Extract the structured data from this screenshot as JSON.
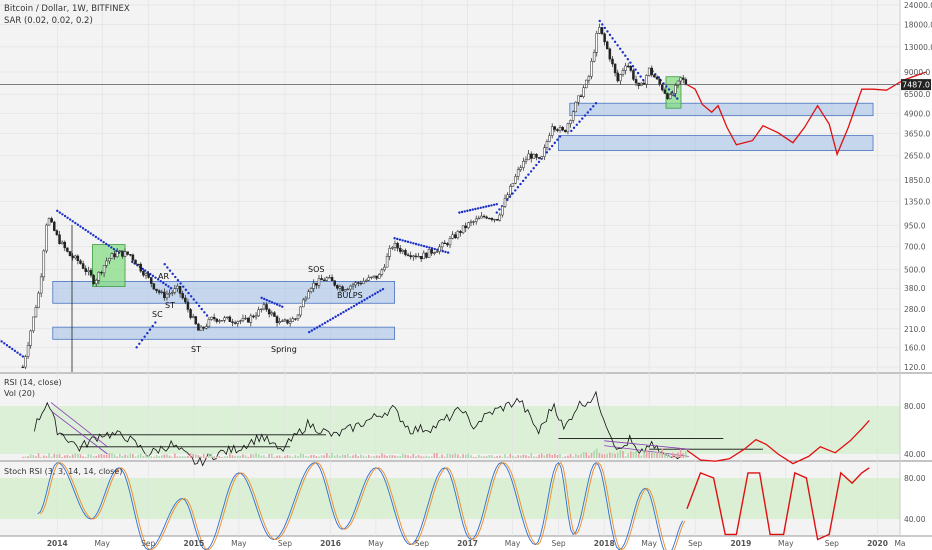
{
  "header": {
    "title": "Bitcoin / Dollar, 1W, BITFINEX",
    "indicator": "SAR (0.02, 0.02, 0.2)"
  },
  "last_price": "7487.0",
  "panels": {
    "rsi_title": "RSI (14, close)",
    "vol_title": "Vol (20)",
    "stoch_title": "Stoch RSI (3, 3, 14, 14, close)"
  },
  "wyckoff": {
    "ar": "AR",
    "sc": "SC",
    "st1": "ST",
    "st2": "ST",
    "spring": "Spring",
    "sos": "SOS",
    "bulps": "BULPS"
  },
  "chart_data": {
    "type": "candlestick",
    "symbol": "Bitcoin / Dollar",
    "interval": "1W",
    "exchange": "BITFINEX",
    "y_scale": "log",
    "price_ticks": [
      "24000.0",
      "18000.0",
      "13000.0",
      "9000.0",
      "6500.0",
      "4900.0",
      "3650.0",
      "2650.0",
      "1850.0",
      "1350.0",
      "950.0",
      "700.0",
      "500.0",
      "380.0",
      "280.0",
      "210.0",
      "160.0",
      "120.0"
    ],
    "time_ticks": [
      "2014",
      "May",
      "Sep",
      "2015",
      "May",
      "Sep",
      "2016",
      "May",
      "Sep",
      "2017",
      "May",
      "Sep",
      "2018",
      "May",
      "Sep",
      "2019",
      "May",
      "Sep",
      "2020",
      "Ma"
    ],
    "rsi_ticks": [
      "80.00",
      "40.00"
    ],
    "stoch_ticks": [
      "80.00",
      "40.00"
    ],
    "price_path": [
      [
        "2013-10-01",
        120
      ],
      [
        "2013-11-15",
        380
      ],
      [
        "2013-12-05",
        1100
      ],
      [
        "2014-01-01",
        800
      ],
      [
        "2014-02-01",
        620
      ],
      [
        "2014-03-01",
        560
      ],
      [
        "2014-04-10",
        420
      ],
      [
        "2014-05-15",
        580
      ],
      [
        "2014-06-10",
        640
      ],
      [
        "2014-07-15",
        620
      ],
      [
        "2014-08-20",
        480
      ],
      [
        "2014-09-20",
        380
      ],
      [
        "2014-10-10",
        340
      ],
      [
        "2014-11-20",
        375
      ],
      [
        "2015-01-15",
        200
      ],
      [
        "2015-02-20",
        245
      ],
      [
        "2015-04-01",
        240
      ],
      [
        "2015-05-20",
        235
      ],
      [
        "2015-07-10",
        290
      ],
      [
        "2015-08-20",
        225
      ],
      [
        "2015-10-01",
        245
      ],
      [
        "2015-11-05",
        390
      ],
      [
        "2015-12-20",
        440
      ],
      [
        "2016-02-01",
        380
      ],
      [
        "2016-03-20",
        415
      ],
      [
        "2016-05-10",
        455
      ],
      [
        "2016-06-15",
        720
      ],
      [
        "2016-07-15",
        650
      ],
      [
        "2016-09-01",
        605
      ],
      [
        "2016-11-01",
        720
      ],
      [
        "2017-01-01",
        960
      ],
      [
        "2017-02-20",
        1100
      ],
      [
        "2017-03-20",
        1050
      ],
      [
        "2017-05-20",
        2200
      ],
      [
        "2017-06-15",
        2700
      ],
      [
        "2017-07-15",
        2400
      ],
      [
        "2017-08-15",
        4200
      ],
      [
        "2017-09-15",
        3700
      ],
      [
        "2017-10-20",
        5800
      ],
      [
        "2017-11-20",
        8200
      ],
      [
        "2017-12-17",
        17500
      ],
      [
        "2018-01-15",
        11500
      ],
      [
        "2018-02-05",
        7800
      ],
      [
        "2018-03-01",
        10500
      ],
      [
        "2018-04-05",
        6900
      ],
      [
        "2018-05-01",
        9300
      ],
      [
        "2018-06-25",
        6100
      ],
      [
        "2018-07-25",
        8200
      ],
      [
        "2018-08-10",
        7487
      ]
    ],
    "projection_path": [
      [
        "2018-08-10",
        7487
      ],
      [
        "2018-09-01",
        7000
      ],
      [
        "2018-09-20",
        5600
      ],
      [
        "2018-10-15",
        5000
      ],
      [
        "2018-11-01",
        5500
      ],
      [
        "2018-11-25",
        4000
      ],
      [
        "2018-12-20",
        3100
      ],
      [
        "2019-02-01",
        3300
      ],
      [
        "2019-03-01",
        4100
      ],
      [
        "2019-04-10",
        3700
      ],
      [
        "2019-05-20",
        3200
      ],
      [
        "2019-06-20",
        4000
      ],
      [
        "2019-07-25",
        5500
      ],
      [
        "2019-08-25",
        4200
      ],
      [
        "2019-09-15",
        2700
      ],
      [
        "2019-10-15",
        4000
      ],
      [
        "2019-11-20",
        7000
      ],
      [
        "2019-12-20",
        7000
      ],
      [
        "2020-01-25",
        6900
      ],
      [
        "2020-03-10",
        8000
      ],
      [
        "2020-05-10",
        9000
      ]
    ],
    "boxes": [
      {
        "type": "support",
        "from": "2013-12-20",
        "to": "2016-06-20",
        "low": 305,
        "high": 420
      },
      {
        "type": "support",
        "from": "2013-12-20",
        "to": "2016-06-20",
        "low": 180,
        "high": 215
      },
      {
        "type": "support",
        "from": "2017-10-01",
        "to": "2019-12-20",
        "low": 4750,
        "high": 5700
      },
      {
        "type": "support",
        "from": "2017-09-01",
        "to": "2019-12-20",
        "low": 2850,
        "high": 3550
      },
      {
        "type": "accumulation",
        "from": "2014-04-05",
        "to": "2014-07-01",
        "low": 390,
        "high": 720
      },
      {
        "type": "accumulation",
        "from": "2018-06-15",
        "to": "2018-07-25",
        "low": 5300,
        "high": 8400
      }
    ],
    "sar_dots": [
      {
        "from": "2013-07-01",
        "to": "2013-10-01",
        "p0": 200,
        "p1": 140
      },
      {
        "from": "2014-01-01",
        "to": "2014-06-15",
        "p0": 1180,
        "p1": 640
      },
      {
        "from": "2014-07-20",
        "to": "2014-11-01",
        "p0": 560,
        "p1": 380
      },
      {
        "from": "2014-08-01",
        "to": "2014-09-20",
        "p0": 160,
        "p1": 230
      },
      {
        "from": "2014-10-15",
        "to": "2015-02-05",
        "p0": 540,
        "p1": 255
      },
      {
        "from": "2015-07-01",
        "to": "2015-08-25",
        "p0": 330,
        "p1": 290
      },
      {
        "from": "2015-11-05",
        "to": "2016-05-20",
        "p0": 200,
        "p1": 375
      },
      {
        "from": "2016-06-20",
        "to": "2016-11-10",
        "p0": 790,
        "p1": 640
      },
      {
        "from": "2016-12-10",
        "to": "2017-03-20",
        "p0": 1150,
        "p1": 1300
      },
      {
        "from": "2017-03-20",
        "to": "2017-09-05",
        "p0": 1150,
        "p1": 3500
      },
      {
        "from": "2017-10-05",
        "to": "2017-12-10",
        "p0": 3800,
        "p1": 5700
      },
      {
        "from": "2017-12-20",
        "to": "2018-04-15",
        "p0": 19000,
        "p1": 8000
      },
      {
        "from": "2018-05-10",
        "to": "2018-07-15",
        "p0": 9100,
        "p1": 6100
      }
    ],
    "rsi": {
      "actual": [
        [
          "2013-11-01",
          62
        ],
        [
          "2013-12-05",
          84
        ],
        [
          "2014-01-01",
          60
        ],
        [
          "2014-03-01",
          45
        ],
        [
          "2014-05-01",
          57
        ],
        [
          "2014-07-01",
          55
        ],
        [
          "2014-09-01",
          40
        ],
        [
          "2014-11-01",
          48
        ],
        [
          "2015-01-10",
          32
        ],
        [
          "2015-03-01",
          40
        ],
        [
          "2015-05-01",
          45
        ],
        [
          "2015-07-01",
          55
        ],
        [
          "2015-08-20",
          42
        ],
        [
          "2015-11-01",
          65
        ],
        [
          "2016-01-10",
          55
        ],
        [
          "2016-03-01",
          62
        ],
        [
          "2016-06-15",
          78
        ],
        [
          "2016-08-01",
          60
        ],
        [
          "2016-10-01",
          62
        ],
        [
          "2016-12-20",
          78
        ],
        [
          "2017-01-10",
          62
        ],
        [
          "2017-03-01",
          74
        ],
        [
          "2017-05-20",
          85
        ],
        [
          "2017-07-10",
          58
        ],
        [
          "2017-08-20",
          82
        ],
        [
          "2017-09-15",
          60
        ],
        [
          "2017-10-20",
          80
        ],
        [
          "2017-12-10",
          88
        ],
        [
          "2018-01-20",
          55
        ],
        [
          "2018-02-10",
          42
        ],
        [
          "2018-03-10",
          52
        ],
        [
          "2018-04-05",
          38
        ],
        [
          "2018-05-01",
          48
        ],
        [
          "2018-06-25",
          36
        ],
        [
          "2018-08-05",
          43
        ]
      ],
      "projection": [
        [
          "2018-08-10",
          43
        ],
        [
          "2018-09-15",
          35
        ],
        [
          "2018-10-25",
          34
        ],
        [
          "2018-12-01",
          36
        ],
        [
          "2019-01-10",
          44
        ],
        [
          "2019-02-10",
          52
        ],
        [
          "2019-03-10",
          48
        ],
        [
          "2019-04-10",
          40
        ],
        [
          "2019-05-20",
          32
        ],
        [
          "2019-07-01",
          38
        ],
        [
          "2019-08-01",
          46
        ],
        [
          "2019-09-10",
          41
        ],
        [
          "2019-10-20",
          51
        ],
        [
          "2019-11-20",
          61
        ],
        [
          "2019-12-10",
          68
        ]
      ],
      "lines": [
        {
          "from": "2014-01-10",
          "to": "2015-12-20",
          "v": 56
        },
        {
          "from": "2014-03-01",
          "to": "2015-09-15",
          "v": 46
        },
        {
          "from": "2017-09-01",
          "to": "2018-11-15",
          "v": 53
        },
        {
          "from": "2018-05-01",
          "to": "2019-03-01",
          "v": 44
        }
      ]
    },
    "stoch": {
      "k": [
        [
          "2013-11-10",
          45
        ],
        [
          "2014-01-01",
          95
        ],
        [
          "2014-04-01",
          40
        ],
        [
          "2014-06-15",
          90
        ],
        [
          "2014-09-01",
          10
        ],
        [
          "2014-12-01",
          60
        ],
        [
          "2015-02-01",
          10
        ],
        [
          "2015-05-01",
          85
        ],
        [
          "2015-08-01",
          20
        ],
        [
          "2015-11-20",
          95
        ],
        [
          "2016-02-01",
          30
        ],
        [
          "2016-05-01",
          90
        ],
        [
          "2016-08-01",
          15
        ],
        [
          "2016-11-01",
          90
        ],
        [
          "2017-01-10",
          20
        ],
        [
          "2017-04-01",
          95
        ],
        [
          "2017-07-01",
          15
        ],
        [
          "2017-09-01",
          95
        ],
        [
          "2017-10-10",
          25
        ],
        [
          "2017-12-10",
          95
        ],
        [
          "2018-02-10",
          10
        ],
        [
          "2018-04-20",
          70
        ],
        [
          "2018-06-20",
          5
        ],
        [
          "2018-08-05",
          40
        ]
      ],
      "projection": [
        [
          "2018-08-10",
          50
        ],
        [
          "2018-09-15",
          85
        ],
        [
          "2018-10-20",
          80
        ],
        [
          "2018-11-20",
          25
        ],
        [
          "2018-12-20",
          25
        ],
        [
          "2019-01-20",
          85
        ],
        [
          "2019-02-20",
          85
        ],
        [
          "2019-03-20",
          25
        ],
        [
          "2019-04-25",
          25
        ],
        [
          "2019-05-25",
          85
        ],
        [
          "2019-06-25",
          80
        ],
        [
          "2019-07-25",
          20
        ],
        [
          "2019-08-25",
          25
        ],
        [
          "2019-09-25",
          85
        ],
        [
          "2019-10-25",
          75
        ],
        [
          "2019-11-20",
          85
        ],
        [
          "2019-12-10",
          90
        ]
      ]
    }
  }
}
